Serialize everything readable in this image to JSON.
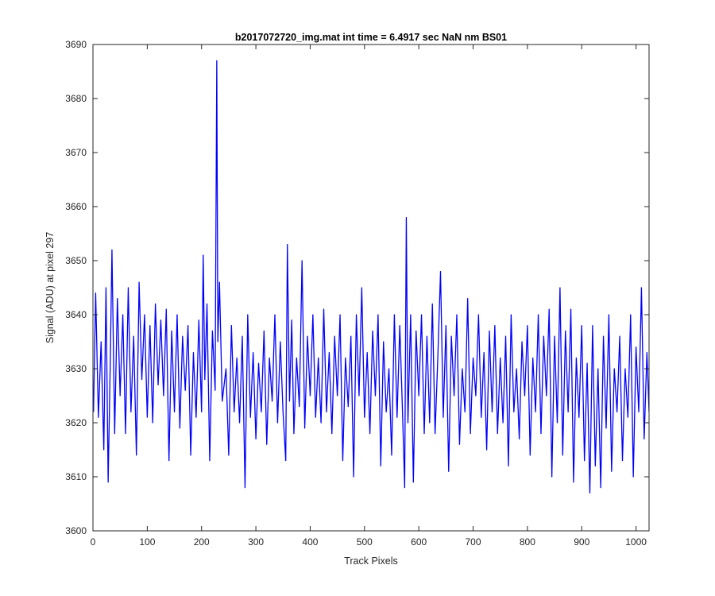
{
  "chart_data": {
    "type": "line",
    "title": "b2017072720_img.mat int time = 6.4917 sec  NaN nm BS01",
    "xlabel": "Track Pixels",
    "ylabel": "Signal (ADU) at pixel 297",
    "xlim": [
      0,
      1024
    ],
    "ylim": [
      3600,
      3690
    ],
    "xticks": [
      0,
      100,
      200,
      300,
      400,
      500,
      600,
      700,
      800,
      900,
      1000
    ],
    "yticks": [
      3600,
      3610,
      3620,
      3630,
      3640,
      3650,
      3660,
      3670,
      3680,
      3690
    ],
    "grid": false,
    "legend": "none",
    "series": [
      {
        "color": "#0000ff",
        "x": [
          1,
          5,
          10,
          15,
          20,
          24,
          28,
          32,
          35,
          40,
          45,
          50,
          55,
          60,
          65,
          70,
          75,
          80,
          85,
          90,
          95,
          100,
          105,
          110,
          115,
          120,
          125,
          130,
          135,
          140,
          145,
          150,
          155,
          160,
          165,
          170,
          175,
          180,
          185,
          190,
          195,
          200,
          203,
          206,
          210,
          215,
          220,
          225,
          228,
          230,
          233,
          238,
          245,
          250,
          255,
          260,
          265,
          270,
          275,
          280,
          285,
          290,
          295,
          300,
          305,
          310,
          315,
          320,
          325,
          330,
          335,
          340,
          345,
          350,
          355,
          358,
          362,
          366,
          370,
          375,
          380,
          385,
          390,
          395,
          400,
          405,
          410,
          415,
          420,
          425,
          430,
          435,
          440,
          445,
          450,
          455,
          460,
          465,
          470,
          475,
          480,
          485,
          490,
          495,
          500,
          505,
          510,
          515,
          520,
          525,
          530,
          535,
          540,
          545,
          550,
          555,
          560,
          565,
          570,
          574,
          577,
          580,
          585,
          590,
          595,
          600,
          605,
          610,
          615,
          620,
          625,
          630,
          635,
          640,
          645,
          650,
          655,
          660,
          665,
          670,
          675,
          680,
          685,
          690,
          695,
          700,
          705,
          710,
          715,
          720,
          725,
          730,
          735,
          740,
          745,
          750,
          755,
          760,
          765,
          770,
          775,
          780,
          785,
          790,
          795,
          800,
          805,
          810,
          815,
          820,
          825,
          830,
          835,
          840,
          845,
          850,
          855,
          860,
          865,
          870,
          875,
          880,
          885,
          890,
          895,
          900,
          905,
          910,
          915,
          920,
          925,
          930,
          935,
          940,
          945,
          950,
          955,
          960,
          965,
          970,
          975,
          980,
          985,
          990,
          995,
          1000,
          1005,
          1010,
          1015,
          1020,
          1024
        ],
        "y": [
          3622,
          3644,
          3621,
          3635,
          3615,
          3645,
          3609,
          3632,
          3652,
          3618,
          3643,
          3625,
          3640,
          3618,
          3645,
          3622,
          3636,
          3614,
          3646,
          3628,
          3640,
          3621,
          3638,
          3620,
          3642,
          3627,
          3639,
          3625,
          3641,
          3613,
          3637,
          3622,
          3640,
          3619,
          3636,
          3626,
          3638,
          3614,
          3633,
          3621,
          3639,
          3622,
          3651,
          3628,
          3642,
          3613,
          3637,
          3626,
          3687,
          3635,
          3646,
          3624,
          3630,
          3614,
          3638,
          3622,
          3632,
          3620,
          3636,
          3608,
          3640,
          3621,
          3633,
          3617,
          3631,
          3622,
          3637,
          3616,
          3632,
          3624,
          3640,
          3620,
          3635,
          3622,
          3613,
          3653,
          3624,
          3639,
          3618,
          3632,
          3623,
          3650,
          3619,
          3636,
          3625,
          3640,
          3621,
          3632,
          3620,
          3641,
          3622,
          3633,
          3618,
          3636,
          3625,
          3640,
          3613,
          3632,
          3623,
          3636,
          3610,
          3640,
          3625,
          3645,
          3621,
          3633,
          3618,
          3637,
          3625,
          3640,
          3612,
          3635,
          3622,
          3630,
          3614,
          3640,
          3621,
          3638,
          3622,
          3608,
          3658,
          3620,
          3640,
          3609,
          3637,
          3625,
          3640,
          3618,
          3636,
          3620,
          3642,
          3618,
          3632,
          3648,
          3621,
          3638,
          3611,
          3636,
          3625,
          3640,
          3616,
          3630,
          3622,
          3643,
          3618,
          3632,
          3625,
          3640,
          3621,
          3633,
          3615,
          3637,
          3622,
          3638,
          3618,
          3632,
          3620,
          3636,
          3612,
          3640,
          3622,
          3630,
          3617,
          3635,
          3625,
          3638,
          3614,
          3632,
          3622,
          3640,
          3618,
          3636,
          3625,
          3641,
          3610,
          3636,
          3620,
          3645,
          3614,
          3637,
          3622,
          3641,
          3609,
          3632,
          3621,
          3638,
          3613,
          3631,
          3607,
          3638,
          3612,
          3630,
          3608,
          3636,
          3619,
          3640,
          3611,
          3630,
          3622,
          3636,
          3613,
          3630,
          3621,
          3640,
          3610,
          3634,
          3622,
          3645,
          3617,
          3633,
          3622
        ]
      }
    ]
  }
}
